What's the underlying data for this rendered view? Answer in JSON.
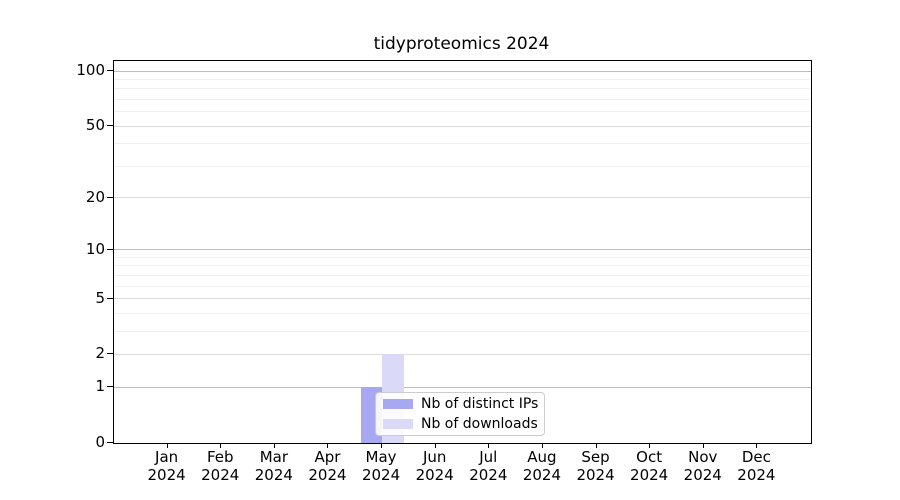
{
  "chart_data": {
    "type": "bar",
    "title": "tidyproteomics 2024",
    "categories": [
      "Jan",
      "Feb",
      "Mar",
      "Apr",
      "May",
      "Jun",
      "Jul",
      "Aug",
      "Sep",
      "Oct",
      "Nov",
      "Dec"
    ],
    "category_year": "2024",
    "series": [
      {
        "name": "Nb of distinct IPs",
        "color": "#a8a8f2",
        "values": [
          0,
          0,
          0,
          0,
          1,
          0,
          0,
          0,
          0,
          0,
          0,
          0
        ]
      },
      {
        "name": "Nb of downloads",
        "color": "#dadaf8",
        "values": [
          0,
          0,
          0,
          0,
          2,
          0,
          0,
          0,
          0,
          0,
          0,
          0
        ]
      }
    ],
    "xlabel": "",
    "ylabel": "",
    "y_axis": {
      "scale": "log1p",
      "ticks": [
        0,
        1,
        2,
        5,
        10,
        20,
        50,
        100
      ],
      "decade_ticks": [
        1,
        10,
        100
      ],
      "minor_ticks": [
        3,
        4,
        6,
        7,
        8,
        9,
        30,
        40,
        60,
        70,
        80,
        90
      ],
      "ylim": [
        0,
        113
      ]
    },
    "grid": "on",
    "legend_position": "lower center",
    "colors": {
      "axis": "#000000",
      "grid_decade": "#bdbdbd",
      "grid_labeled": "#dcdcdc",
      "grid_minor": "#f0f0f0",
      "background": "#ffffff"
    }
  }
}
